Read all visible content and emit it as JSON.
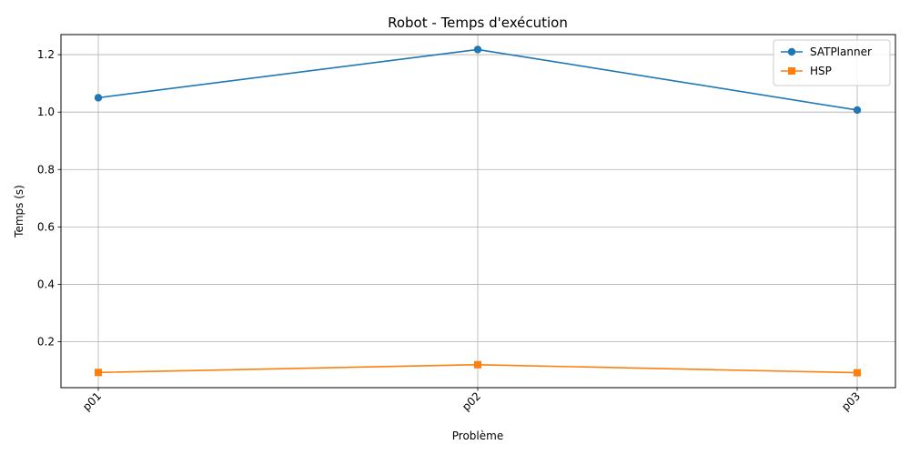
{
  "chart_data": {
    "type": "line",
    "title": "Robot - Temps d'exécution",
    "xlabel": "Problème",
    "ylabel": "Temps (s)",
    "categories": [
      "p01",
      "p02",
      "p03"
    ],
    "ylim": [
      0.04,
      1.27
    ],
    "yticks": [
      0.2,
      0.4,
      0.6,
      0.8,
      1.0,
      1.2
    ],
    "ytick_labels": [
      "0.2",
      "0.4",
      "0.6",
      "0.8",
      "1.0",
      "1.2"
    ],
    "grid": true,
    "legend_position": "top-right",
    "x_tick_rotation": 45,
    "series": [
      {
        "name": "SATPlanner",
        "values": [
          1.05,
          1.218,
          1.007
        ],
        "color": "#1f77b4",
        "marker": "circle"
      },
      {
        "name": "HSP",
        "values": [
          0.093,
          0.12,
          0.092
        ],
        "color": "#ff7f0e",
        "marker": "square"
      }
    ]
  }
}
